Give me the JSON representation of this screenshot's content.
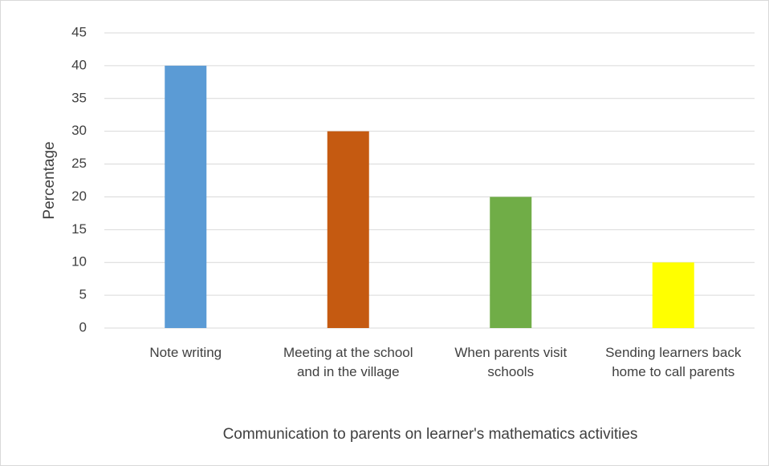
{
  "chart_data": {
    "type": "bar",
    "categories": [
      "Note writing",
      "Meeting at the school and in the village",
      "When parents visit schools",
      "Sending learners back home to call parents"
    ],
    "values": [
      40,
      30,
      20,
      10
    ],
    "colors": [
      "#5b9bd5",
      "#c55a11",
      "#70ad47",
      "#ffff00"
    ],
    "ylabel": "Percentage",
    "xlabel": "Communication to parents on learner's mathematics activities",
    "ylim": [
      0,
      45
    ],
    "yticks": [
      0,
      5,
      10,
      15,
      20,
      25,
      30,
      35,
      40,
      45
    ],
    "grid": true
  }
}
